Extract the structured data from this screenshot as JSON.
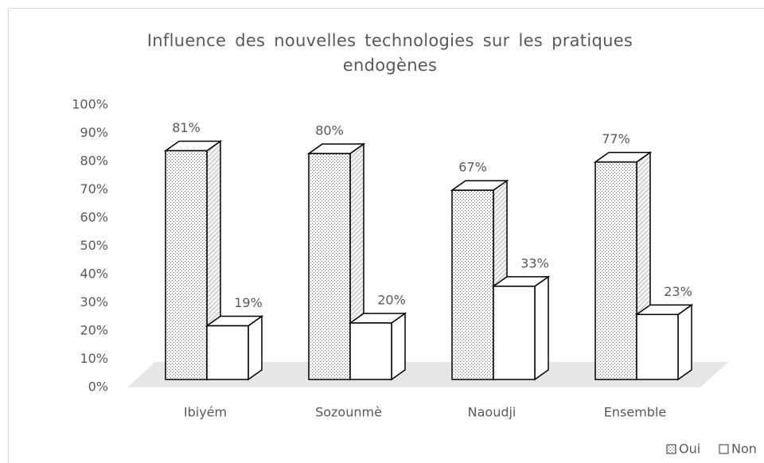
{
  "chart_data": {
    "type": "bar3d",
    "title": "Influence des nouvelles technologies sur les pratiques endogènes",
    "categories": [
      "Ibiyém",
      "Sozounmè",
      "Naoudji",
      "Ensemble"
    ],
    "series": [
      {
        "name": "Oui",
        "values": [
          81,
          80,
          67,
          77
        ],
        "value_labels": [
          "81%",
          "80%",
          "67%",
          "77%"
        ]
      },
      {
        "name": "Non",
        "values": [
          19,
          20,
          33,
          23
        ],
        "value_labels": [
          "19%",
          "20%",
          "33%",
          "23%"
        ]
      }
    ],
    "ylim": [
      0,
      100
    ],
    "yticks": [
      {
        "value": 0,
        "label": "0%"
      },
      {
        "value": 10,
        "label": "10%"
      },
      {
        "value": 20,
        "label": "20%"
      },
      {
        "value": 30,
        "label": "30%"
      },
      {
        "value": 40,
        "label": "40%"
      },
      {
        "value": 50,
        "label": "50%"
      },
      {
        "value": 60,
        "label": "60%"
      },
      {
        "value": 70,
        "label": "70%"
      },
      {
        "value": 80,
        "label": "80%"
      },
      {
        "value": 90,
        "label": "90%"
      },
      {
        "value": 100,
        "label": "100%"
      }
    ],
    "grid": false,
    "legend": "bottom-right"
  }
}
